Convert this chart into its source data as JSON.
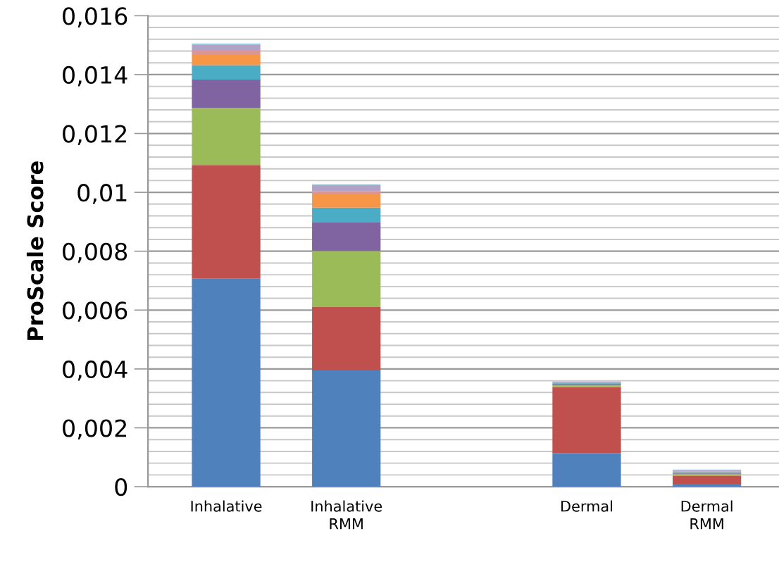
{
  "chart_data": {
    "type": "bar",
    "stacked": true,
    "ylabel": "ProScale Score",
    "categories": [
      "Inhalative",
      "Inhalative\nRMM",
      null,
      "Dermal",
      "Dermal\nRMM"
    ],
    "series": [
      {
        "color": "#4f81bd",
        "values": [
          0.00708,
          0.00395,
          null,
          0.00114,
          0.0001
        ]
      },
      {
        "color": "#c0504d",
        "values": [
          0.00385,
          0.00215,
          null,
          0.00224,
          0.00026
        ]
      },
      {
        "color": "#9bbb59",
        "values": [
          0.00194,
          0.00191,
          null,
          8e-05,
          8e-05
        ]
      },
      {
        "color": "#8064a2",
        "values": [
          0.00096,
          0.00098,
          null,
          4e-05,
          3e-05
        ]
      },
      {
        "color": "#4bacc6",
        "values": [
          0.00049,
          0.00049,
          null,
          2e-05,
          3e-05
        ]
      },
      {
        "color": "#f79646",
        "values": [
          0.00037,
          0.00045,
          null,
          2e-05,
          2e-05
        ]
      },
      {
        "color": "#d99694",
        "values": [
          0.00012,
          0.0001,
          null,
          1e-05,
          1e-05
        ]
      },
      {
        "color": "#b3a2c7",
        "values": [
          0.00021,
          0.00022,
          null,
          2e-05,
          3e-05
        ]
      },
      {
        "color": "#93cddd",
        "values": [
          4e-05,
          3e-05,
          null,
          1e-05,
          2e-05
        ]
      }
    ],
    "ylim": [
      0,
      0.016
    ],
    "yticks": [
      {
        "value": 0,
        "label": "0"
      },
      {
        "value": 0.0004,
        "label": null
      },
      {
        "value": 0.0008,
        "label": null
      },
      {
        "value": 0.0012,
        "label": null
      },
      {
        "value": 0.0016,
        "label": null
      },
      {
        "value": 0.002,
        "label": "0,002"
      },
      {
        "value": 0.0024,
        "label": null
      },
      {
        "value": 0.0028,
        "label": null
      },
      {
        "value": 0.0032,
        "label": null
      },
      {
        "value": 0.0036,
        "label": null
      },
      {
        "value": 0.004,
        "label": "0,004"
      },
      {
        "value": 0.0044,
        "label": null
      },
      {
        "value": 0.0048,
        "label": null
      },
      {
        "value": 0.0052,
        "label": null
      },
      {
        "value": 0.0056,
        "label": null
      },
      {
        "value": 0.006,
        "label": "0,006"
      },
      {
        "value": 0.0064,
        "label": null
      },
      {
        "value": 0.0068,
        "label": null
      },
      {
        "value": 0.0072,
        "label": null
      },
      {
        "value": 0.0076,
        "label": null
      },
      {
        "value": 0.008,
        "label": "0,008"
      },
      {
        "value": 0.0084,
        "label": null
      },
      {
        "value": 0.0088,
        "label": null
      },
      {
        "value": 0.0092,
        "label": null
      },
      {
        "value": 0.0096,
        "label": null
      },
      {
        "value": 0.01,
        "label": "0,01"
      },
      {
        "value": 0.0104,
        "label": null
      },
      {
        "value": 0.0108,
        "label": null
      },
      {
        "value": 0.0112,
        "label": null
      },
      {
        "value": 0.0116,
        "label": null
      },
      {
        "value": 0.012,
        "label": "0,012"
      },
      {
        "value": 0.0124,
        "label": null
      },
      {
        "value": 0.0128,
        "label": null
      },
      {
        "value": 0.0132,
        "label": null
      },
      {
        "value": 0.0136,
        "label": null
      },
      {
        "value": 0.014,
        "label": "0,014"
      },
      {
        "value": 0.0144,
        "label": null
      },
      {
        "value": 0.0148,
        "label": null
      },
      {
        "value": 0.0152,
        "label": null
      },
      {
        "value": 0.0156,
        "label": null
      },
      {
        "value": 0.016,
        "label": "0,016"
      }
    ],
    "grid": "y"
  }
}
